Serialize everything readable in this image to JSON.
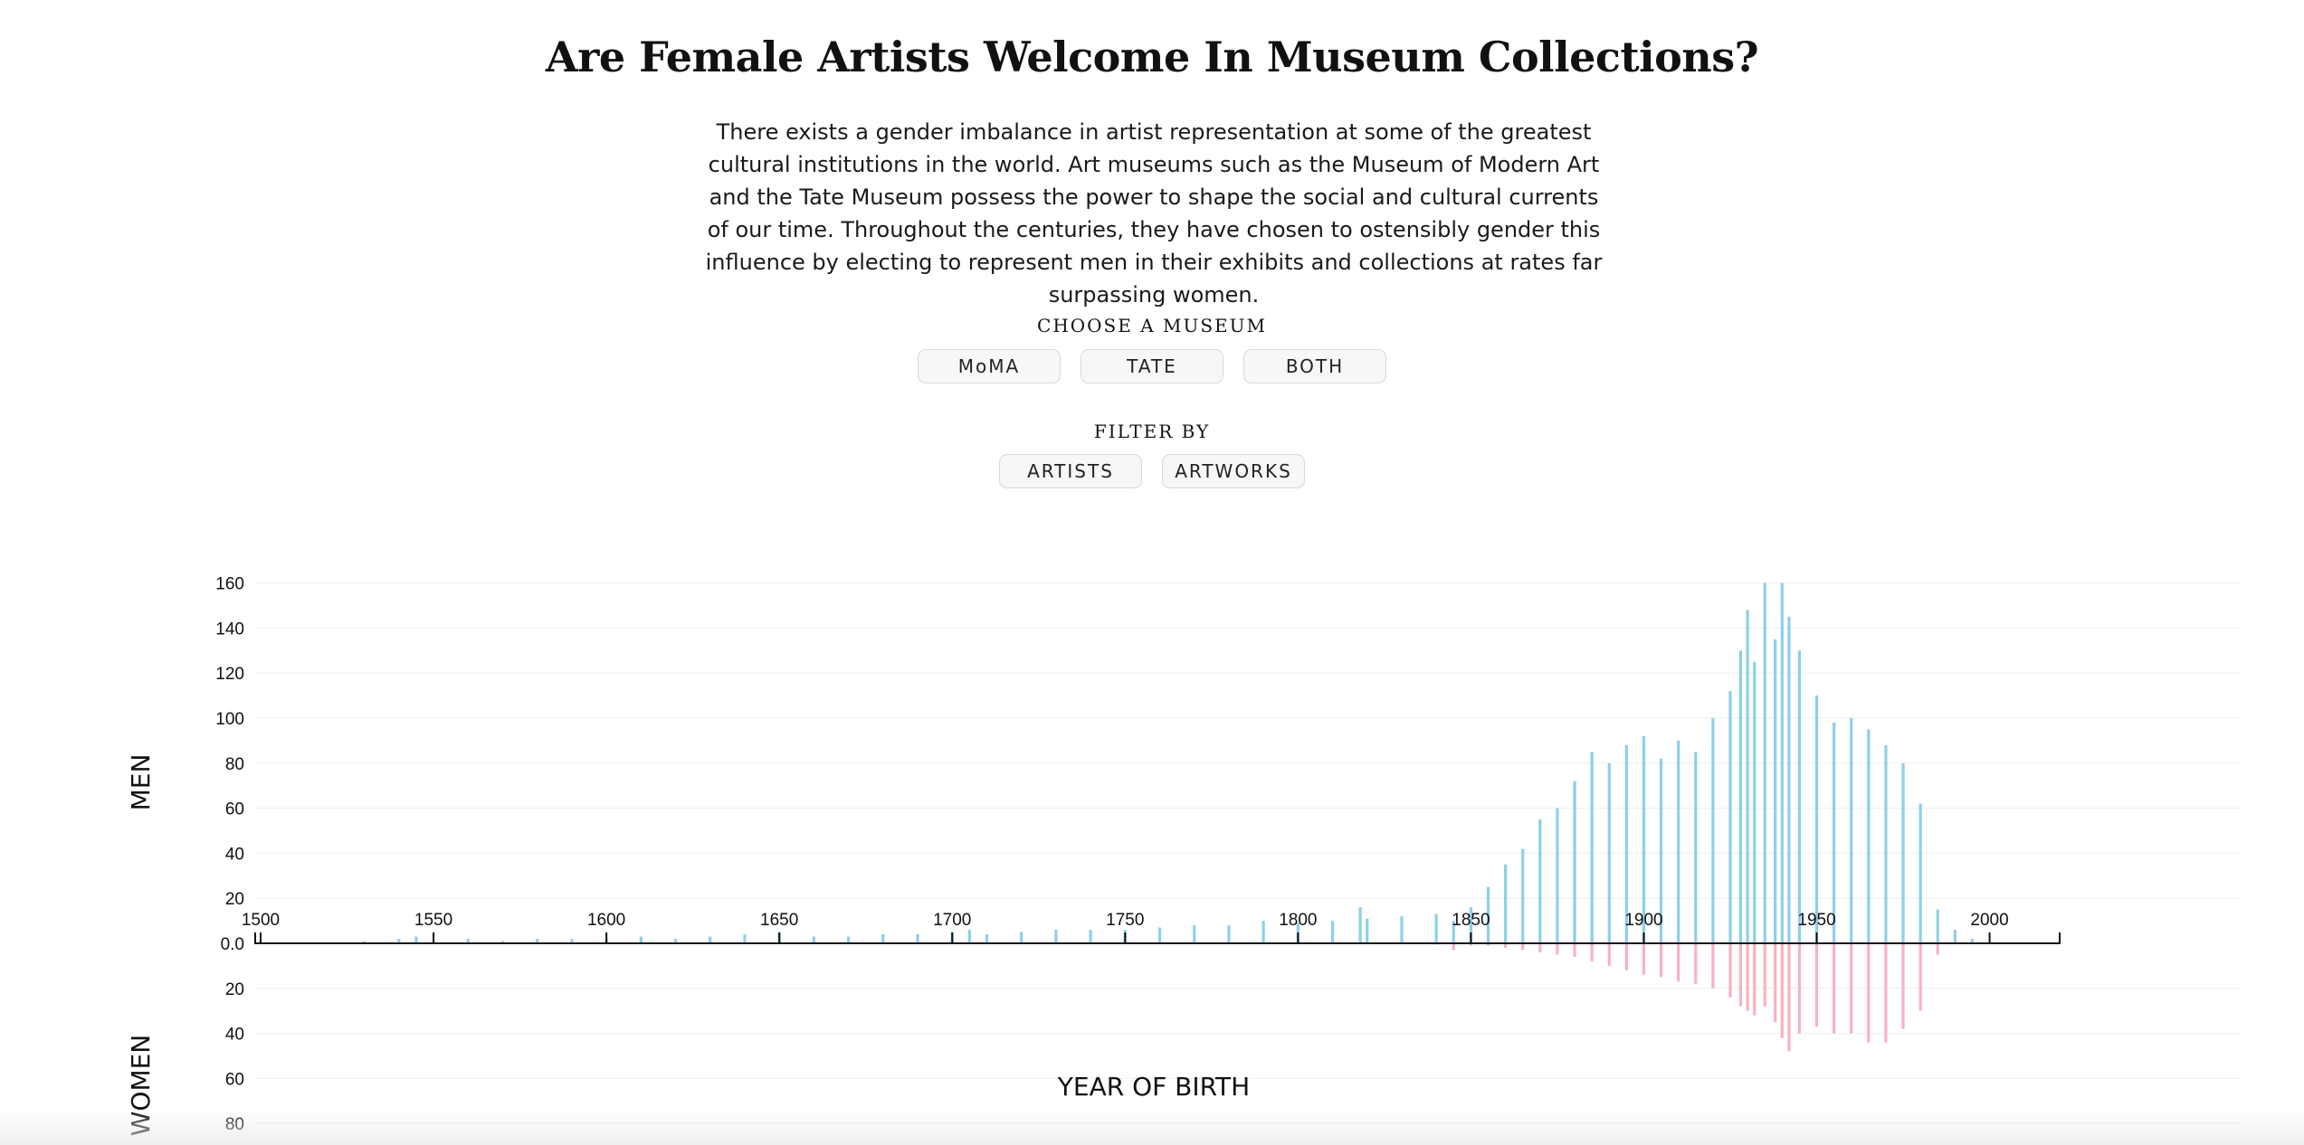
{
  "page": {
    "title": "Are Female Artists Welcome In Museum Collections?",
    "intro": "There exists a gender imbalance in artist representation at some of the greatest cultural institutions in the world. Art museums such as the Museum of Modern Art and the Tate Museum possess the power to shape the social and cultural currents of our time. Throughout the centuries, they have chosen to ostensibly gender this influence by electing to represent men in their exhibits and collections at rates far surpassing women."
  },
  "controls": {
    "museum_label": "Choose a museum",
    "museum_buttons": [
      "MoMA",
      "TATE",
      "BOTH"
    ],
    "filter_label": "Filter by",
    "filter_buttons": [
      "ARTISTS",
      "ARTWORKS"
    ]
  },
  "chart_data": {
    "type": "bar",
    "title": "",
    "xlabel": "YEAR OF BIRTH",
    "ylabel_top": "MEN",
    "ylabel_bottom": "WOMEN",
    "xlim": [
      1500,
      2020
    ],
    "x_ticks": [
      1500,
      1550,
      1600,
      1650,
      1700,
      1750,
      1800,
      1850,
      1900,
      1950,
      2000
    ],
    "y_ticks_men": [
      "0.0",
      "20",
      "40",
      "60",
      "80",
      "100",
      "120",
      "140",
      "160"
    ],
    "y_ticks_women": [
      "20",
      "40",
      "60",
      "80"
    ],
    "ylim_men": [
      0,
      160
    ],
    "ylim_women": [
      0,
      80
    ],
    "grid": true,
    "colors": {
      "men": "#8ecfe8",
      "women": "#f6b3c2",
      "axis": "#111111",
      "grid": "#eeeeee"
    },
    "series": [
      {
        "name": "MEN",
        "x": [
          1530,
          1540,
          1545,
          1560,
          1570,
          1580,
          1590,
          1600,
          1610,
          1620,
          1630,
          1640,
          1650,
          1660,
          1670,
          1680,
          1690,
          1700,
          1705,
          1710,
          1720,
          1730,
          1740,
          1750,
          1760,
          1770,
          1780,
          1790,
          1800,
          1810,
          1818,
          1820,
          1830,
          1840,
          1845,
          1850,
          1855,
          1860,
          1865,
          1870,
          1875,
          1880,
          1885,
          1890,
          1895,
          1900,
          1905,
          1910,
          1915,
          1920,
          1925,
          1928,
          1930,
          1932,
          1935,
          1938,
          1940,
          1942,
          1945,
          1950,
          1955,
          1960,
          1965,
          1970,
          1975,
          1980,
          1985,
          1990,
          1995
        ],
        "values": [
          1,
          2,
          3,
          2,
          1,
          2,
          2,
          2,
          3,
          2,
          3,
          4,
          5,
          3,
          3,
          4,
          4,
          5,
          6,
          4,
          5,
          6,
          6,
          6,
          7,
          8,
          8,
          10,
          9,
          10,
          16,
          11,
          12,
          13,
          10,
          16,
          25,
          35,
          42,
          55,
          60,
          72,
          85,
          80,
          88,
          92,
          82,
          90,
          85,
          100,
          112,
          130,
          148,
          125,
          160,
          135,
          160,
          145,
          130,
          110,
          98,
          100,
          95,
          88,
          80,
          62,
          15,
          6,
          2
        ]
      },
      {
        "name": "WOMEN",
        "x": [
          1840,
          1845,
          1850,
          1855,
          1860,
          1865,
          1870,
          1875,
          1880,
          1885,
          1890,
          1895,
          1900,
          1905,
          1910,
          1915,
          1920,
          1925,
          1928,
          1930,
          1932,
          1935,
          1938,
          1940,
          1942,
          1945,
          1950,
          1955,
          1960,
          1965,
          1970,
          1975,
          1980,
          1985
        ],
        "values": [
          0.5,
          3,
          1,
          1,
          2,
          3,
          4,
          5,
          6,
          8,
          10,
          12,
          14,
          15,
          17,
          18,
          20,
          24,
          28,
          30,
          32,
          28,
          35,
          42,
          48,
          40,
          37,
          40,
          40,
          44,
          44,
          38,
          30,
          5
        ]
      }
    ]
  }
}
